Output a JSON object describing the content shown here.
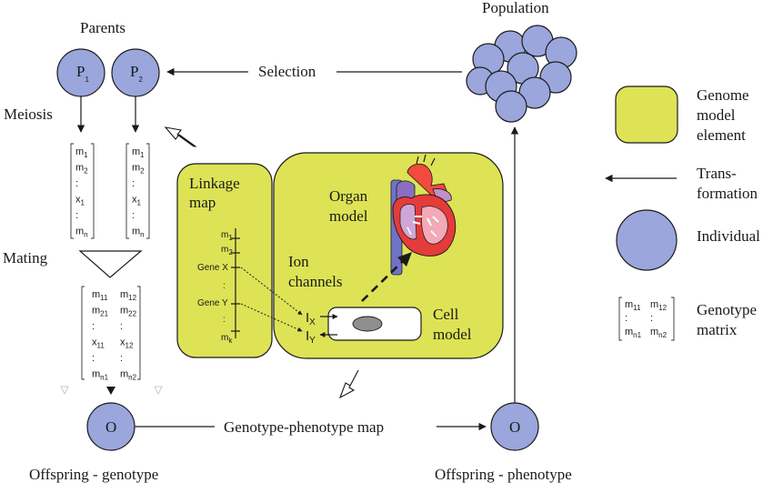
{
  "parents": {
    "title": "Parents",
    "p1": "P",
    "p1_sub": "1",
    "p2": "P",
    "p2_sub": "2"
  },
  "population": {
    "title": "Population"
  },
  "selection": {
    "label": "Selection"
  },
  "meiosis": {
    "label": "Meiosis"
  },
  "mating": {
    "label": "Mating"
  },
  "genotype_col": [
    "m",
    "m",
    ":",
    "x",
    ":",
    "m"
  ],
  "genotype_col_subs_1": [
    "1",
    "2",
    "",
    "1",
    "",
    "n"
  ],
  "genotype_col_subs_2": [
    "1",
    "2",
    "",
    "1",
    "",
    "n"
  ],
  "offspring_matrix": {
    "left": [
      "m",
      "m",
      ":",
      "x",
      ":",
      "m"
    ],
    "left_subs": [
      "11",
      "21",
      "",
      "11",
      "",
      "n1"
    ],
    "right": [
      "m",
      "m",
      ":",
      "x",
      ":",
      "m"
    ],
    "right_subs": [
      "12",
      "22",
      "",
      "12",
      "",
      "n2"
    ]
  },
  "offspring_genotype": {
    "circle": "O",
    "label": "Offspring - genotype"
  },
  "offspring_phenotype": {
    "circle": "O",
    "label": "Offspring - phenotype"
  },
  "gp_map": {
    "label": "Genotype-phenotype map"
  },
  "linkage": {
    "title_1": "Linkage",
    "title_2": "map",
    "m1": "m",
    "m1_sub": "1",
    "m2": "m",
    "m2_sub": "2",
    "dot": ":",
    "gene_x": "Gene X",
    "gene_y": "Gene Y",
    "mk": "m",
    "mk_sub": "k"
  },
  "organ": {
    "line1": "Organ",
    "line2": "model"
  },
  "ion": {
    "line1": "Ion",
    "line2": "channels",
    "ix": "I",
    "ix_sub": "X",
    "iy": "I",
    "iy_sub": "Y"
  },
  "cell": {
    "line1": "Cell",
    "line2": "model"
  },
  "legend": {
    "genome_1": "Genome",
    "genome_2": "model",
    "genome_3": "element",
    "trans_1": "Trans-",
    "trans_2": "formation",
    "individual": "Individual",
    "geno_1": "Genotype",
    "geno_2": "matrix",
    "matrix_left": [
      "m",
      ":",
      "m"
    ],
    "matrix_left_subs": [
      "11",
      "",
      "n1"
    ],
    "matrix_right": [
      "m",
      ":",
      "m"
    ],
    "matrix_right_subs": [
      "12",
      "",
      "n2"
    ]
  },
  "colors": {
    "individual": "#9aa6dc",
    "genome_model": "#dde355"
  }
}
